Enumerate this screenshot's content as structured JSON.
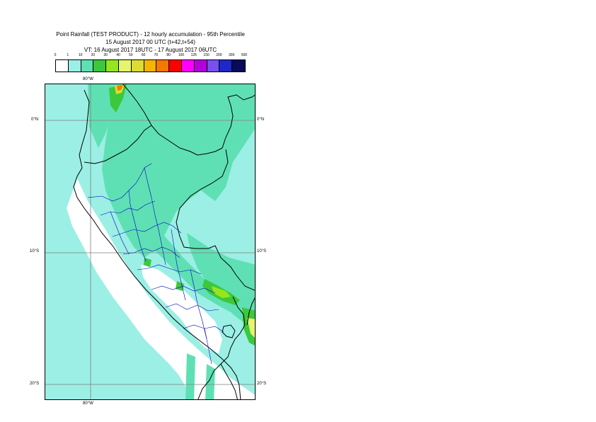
{
  "header": {
    "line1": "Point Rainfall (TEST PRODUCT) - 12 hourly accumulation - 95th Percentile",
    "line2": "15 August 2017 00 UTC (t+42,t+54)",
    "line3": "VT: 16 August 2017 18UTC - 17 August 2017 06UTC"
  },
  "legend": {
    "labels": [
      "0",
      "1",
      "10",
      "20",
      "30",
      "40",
      "50",
      "60",
      "70",
      "80",
      "100",
      "125",
      "150",
      "200",
      "300",
      "500"
    ],
    "colors": [
      "#ffffff",
      "#9cefe4",
      "#5fe0b4",
      "#3cc83c",
      "#96e61e",
      "#e6f56e",
      "#dcdc32",
      "#f5b400",
      "#f57800",
      "#ff0000",
      "#ff00ff",
      "#b400dc",
      "#7850f0",
      "#1e28c8",
      "#0a0a5a"
    ]
  },
  "map": {
    "lon_top": "80°W",
    "lon_bottom": "80°W",
    "lat_left": [
      "0°N",
      "10°S",
      "20°S"
    ],
    "lat_right": [
      "0°N",
      "10°S",
      "20°S"
    ]
  }
}
